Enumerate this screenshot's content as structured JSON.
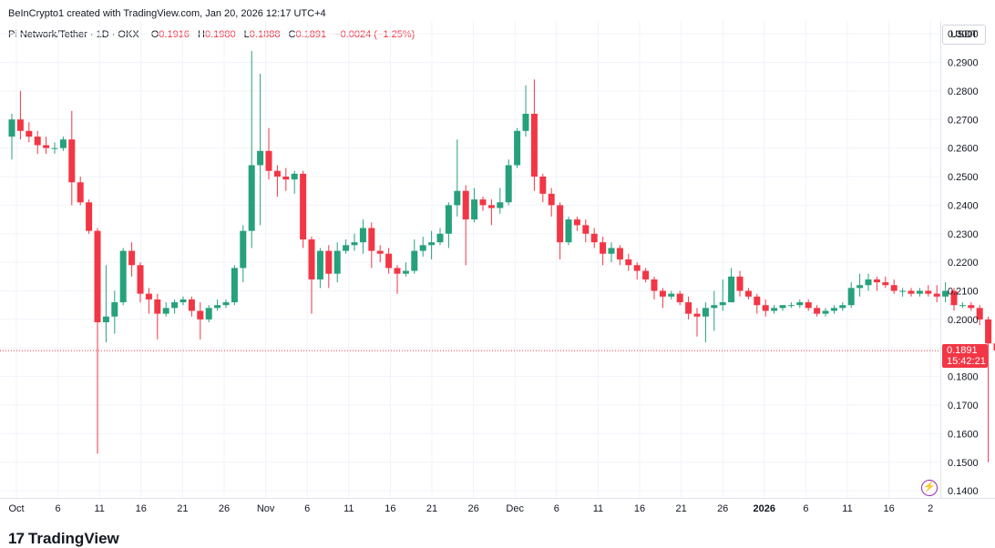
{
  "header": {
    "attribution": "BeInCrypto1 created with TradingView.com, Jan 20, 2026 12:17 UTC+4"
  },
  "ohlc": {
    "symbol": "Pi Network/Tether · 1D · OKX",
    "o_label": "O",
    "o_value": "0.1916",
    "h_label": "H",
    "h_value": "0.1980",
    "l_label": "L",
    "l_value": "0.1888",
    "c_label": "C",
    "c_value": "0.1891",
    "change": "−0.0024 (−1.25%)"
  },
  "currency": "USDT",
  "last_price_tag": {
    "price": "0.1891",
    "countdown": "15:42:21"
  },
  "footer": {
    "brand": "TradingView",
    "logo_mark": "17"
  },
  "colors": {
    "up": "#26a17b",
    "down": "#f23645",
    "grid": "#f0f3fa",
    "axis_text": "#131722",
    "price_line": "#f23645"
  },
  "icons": {
    "lightning": "lightning-icon"
  },
  "chart_data": {
    "type": "candlestick",
    "x_tick_labels": [
      "Oct",
      "6",
      "11",
      "16",
      "21",
      "26",
      "Nov",
      "6",
      "11",
      "16",
      "21",
      "26",
      "Dec",
      "6",
      "11",
      "16",
      "21",
      "26",
      "2026",
      "6",
      "11",
      "16",
      "2"
    ],
    "x_tick_bold": [
      "2026"
    ],
    "y_tick_labels": [
      "0.3000",
      "0.2900",
      "0.2800",
      "0.2700",
      "0.2600",
      "0.2500",
      "0.2400",
      "0.2300",
      "0.2200",
      "0.2100",
      "0.2000",
      "0.1900",
      "0.1800",
      "0.1700",
      "0.1600",
      "0.1500",
      "0.1400"
    ],
    "ylim": [
      0.1375,
      0.3045
    ],
    "grid": true,
    "last_price": 0.1891,
    "candles": [
      [
        0.264,
        0.272,
        0.256,
        0.27
      ],
      [
        0.27,
        0.28,
        0.263,
        0.266
      ],
      [
        0.266,
        0.269,
        0.262,
        0.264
      ],
      [
        0.264,
        0.266,
        0.258,
        0.261
      ],
      [
        0.261,
        0.264,
        0.258,
        0.26
      ],
      [
        0.26,
        0.262,
        0.258,
        0.26
      ],
      [
        0.26,
        0.264,
        0.259,
        0.263
      ],
      [
        0.263,
        0.273,
        0.24,
        0.248
      ],
      [
        0.248,
        0.25,
        0.24,
        0.241
      ],
      [
        0.241,
        0.242,
        0.23,
        0.231
      ],
      [
        0.231,
        0.232,
        0.153,
        0.199
      ],
      [
        0.199,
        0.219,
        0.192,
        0.201
      ],
      [
        0.201,
        0.21,
        0.195,
        0.206
      ],
      [
        0.206,
        0.225,
        0.205,
        0.224
      ],
      [
        0.224,
        0.227,
        0.215,
        0.219
      ],
      [
        0.219,
        0.22,
        0.206,
        0.209
      ],
      [
        0.209,
        0.211,
        0.202,
        0.207
      ],
      [
        0.207,
        0.209,
        0.193,
        0.202
      ],
      [
        0.202,
        0.206,
        0.201,
        0.204
      ],
      [
        0.204,
        0.207,
        0.202,
        0.206
      ],
      [
        0.206,
        0.208,
        0.205,
        0.207
      ],
      [
        0.207,
        0.208,
        0.201,
        0.203
      ],
      [
        0.203,
        0.206,
        0.193,
        0.2
      ],
      [
        0.2,
        0.205,
        0.199,
        0.204
      ],
      [
        0.204,
        0.207,
        0.203,
        0.205
      ],
      [
        0.205,
        0.207,
        0.204,
        0.206
      ],
      [
        0.206,
        0.219,
        0.205,
        0.218
      ],
      [
        0.218,
        0.233,
        0.213,
        0.231
      ],
      [
        0.231,
        0.294,
        0.225,
        0.254
      ],
      [
        0.254,
        0.286,
        0.233,
        0.259
      ],
      [
        0.259,
        0.267,
        0.249,
        0.252
      ],
      [
        0.252,
        0.254,
        0.243,
        0.25
      ],
      [
        0.25,
        0.253,
        0.245,
        0.249
      ],
      [
        0.249,
        0.252,
        0.244,
        0.251
      ],
      [
        0.251,
        0.252,
        0.225,
        0.228
      ],
      [
        0.228,
        0.229,
        0.202,
        0.214
      ],
      [
        0.214,
        0.225,
        0.211,
        0.224
      ],
      [
        0.224,
        0.226,
        0.211,
        0.216
      ],
      [
        0.216,
        0.227,
        0.213,
        0.224
      ],
      [
        0.224,
        0.228,
        0.223,
        0.226
      ],
      [
        0.226,
        0.23,
        0.224,
        0.227
      ],
      [
        0.227,
        0.235,
        0.223,
        0.232
      ],
      [
        0.232,
        0.234,
        0.218,
        0.224
      ],
      [
        0.224,
        0.226,
        0.22,
        0.223
      ],
      [
        0.223,
        0.225,
        0.216,
        0.218
      ],
      [
        0.218,
        0.219,
        0.209,
        0.216
      ],
      [
        0.216,
        0.22,
        0.215,
        0.217
      ],
      [
        0.217,
        0.228,
        0.216,
        0.224
      ],
      [
        0.224,
        0.229,
        0.222,
        0.226
      ],
      [
        0.226,
        0.231,
        0.221,
        0.227
      ],
      [
        0.227,
        0.232,
        0.226,
        0.23
      ],
      [
        0.23,
        0.241,
        0.225,
        0.24
      ],
      [
        0.24,
        0.263,
        0.236,
        0.245
      ],
      [
        0.245,
        0.247,
        0.219,
        0.235
      ],
      [
        0.235,
        0.246,
        0.234,
        0.242
      ],
      [
        0.242,
        0.243,
        0.238,
        0.24
      ],
      [
        0.24,
        0.242,
        0.233,
        0.239
      ],
      [
        0.239,
        0.246,
        0.237,
        0.241
      ],
      [
        0.241,
        0.256,
        0.24,
        0.254
      ],
      [
        0.254,
        0.267,
        0.253,
        0.266
      ],
      [
        0.266,
        0.282,
        0.264,
        0.272
      ],
      [
        0.272,
        0.284,
        0.245,
        0.25
      ],
      [
        0.25,
        0.251,
        0.241,
        0.244
      ],
      [
        0.244,
        0.246,
        0.236,
        0.24
      ],
      [
        0.24,
        0.241,
        0.221,
        0.227
      ],
      [
        0.227,
        0.236,
        0.226,
        0.235
      ],
      [
        0.235,
        0.236,
        0.231,
        0.233
      ],
      [
        0.233,
        0.235,
        0.227,
        0.23
      ],
      [
        0.23,
        0.232,
        0.225,
        0.227
      ],
      [
        0.227,
        0.229,
        0.219,
        0.223
      ],
      [
        0.223,
        0.227,
        0.22,
        0.225
      ],
      [
        0.225,
        0.226,
        0.219,
        0.221
      ],
      [
        0.221,
        0.223,
        0.217,
        0.219
      ],
      [
        0.219,
        0.22,
        0.214,
        0.217
      ],
      [
        0.217,
        0.218,
        0.213,
        0.214
      ],
      [
        0.214,
        0.215,
        0.207,
        0.21
      ],
      [
        0.21,
        0.211,
        0.204,
        0.208
      ],
      [
        0.208,
        0.21,
        0.207,
        0.209
      ],
      [
        0.209,
        0.21,
        0.205,
        0.206
      ],
      [
        0.206,
        0.208,
        0.2,
        0.202
      ],
      [
        0.202,
        0.204,
        0.194,
        0.201
      ],
      [
        0.201,
        0.206,
        0.192,
        0.204
      ],
      [
        0.204,
        0.21,
        0.196,
        0.205
      ],
      [
        0.205,
        0.214,
        0.203,
        0.206
      ],
      [
        0.206,
        0.218,
        0.206,
        0.215
      ],
      [
        0.215,
        0.217,
        0.208,
        0.21
      ],
      [
        0.21,
        0.211,
        0.207,
        0.208
      ],
      [
        0.208,
        0.209,
        0.202,
        0.205
      ],
      [
        0.205,
        0.207,
        0.201,
        0.203
      ],
      [
        0.203,
        0.205,
        0.202,
        0.204
      ],
      [
        0.204,
        0.205,
        0.203,
        0.205
      ],
      [
        0.205,
        0.206,
        0.204,
        0.205
      ],
      [
        0.205,
        0.207,
        0.204,
        0.206
      ],
      [
        0.206,
        0.207,
        0.203,
        0.204
      ],
      [
        0.204,
        0.205,
        0.201,
        0.202
      ],
      [
        0.202,
        0.204,
        0.201,
        0.203
      ],
      [
        0.203,
        0.205,
        0.202,
        0.204
      ],
      [
        0.204,
        0.206,
        0.203,
        0.205
      ],
      [
        0.205,
        0.213,
        0.204,
        0.211
      ],
      [
        0.211,
        0.216,
        0.208,
        0.212
      ],
      [
        0.212,
        0.216,
        0.21,
        0.214
      ],
      [
        0.214,
        0.215,
        0.21,
        0.213
      ],
      [
        0.213,
        0.215,
        0.211,
        0.212
      ],
      [
        0.212,
        0.214,
        0.209,
        0.21
      ],
      [
        0.21,
        0.211,
        0.208,
        0.21
      ],
      [
        0.21,
        0.211,
        0.208,
        0.209
      ],
      [
        0.209,
        0.211,
        0.208,
        0.21
      ],
      [
        0.21,
        0.212,
        0.208,
        0.209
      ],
      [
        0.209,
        0.212,
        0.206,
        0.208
      ],
      [
        0.208,
        0.213,
        0.206,
        0.21
      ],
      [
        0.21,
        0.211,
        0.203,
        0.205
      ],
      [
        0.205,
        0.206,
        0.204,
        0.205
      ],
      [
        0.205,
        0.206,
        0.203,
        0.204
      ],
      [
        0.204,
        0.205,
        0.198,
        0.2
      ],
      [
        0.2,
        0.201,
        0.15,
        0.1916
      ],
      [
        0.1916,
        0.198,
        0.1888,
        0.1891
      ]
    ]
  }
}
